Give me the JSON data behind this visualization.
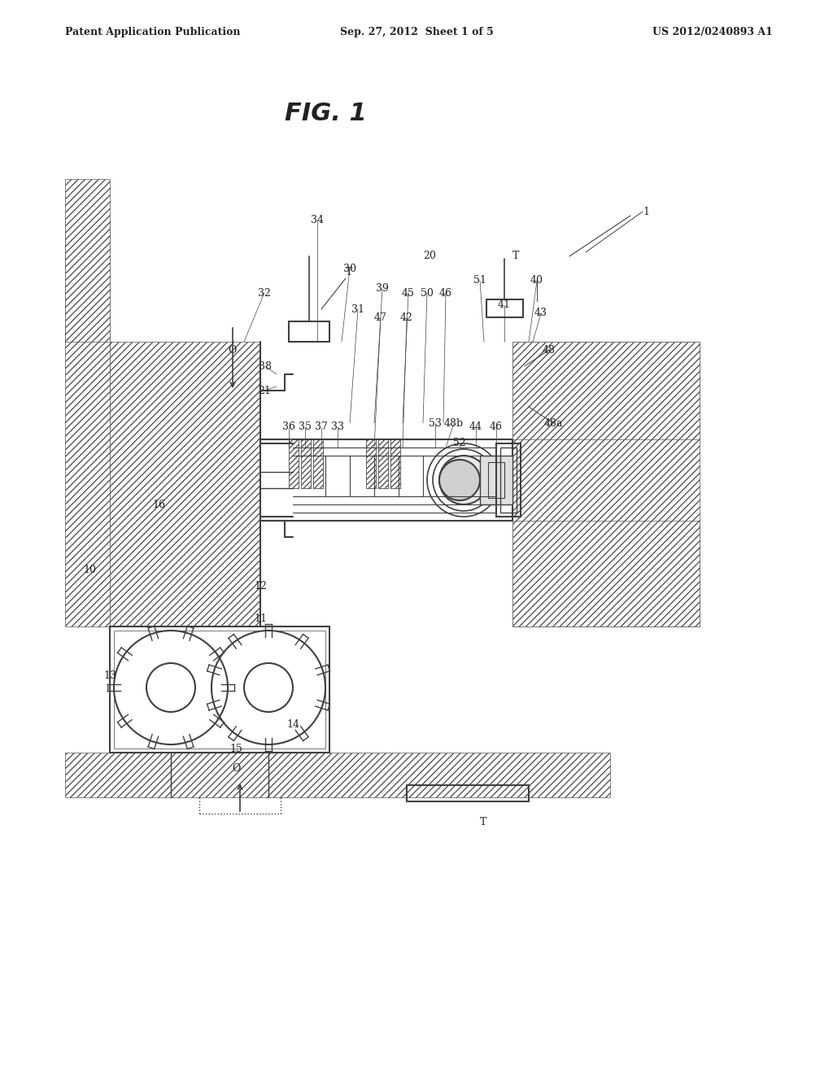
{
  "bg_color": "#ffffff",
  "line_color": "#404040",
  "hatch_color": "#606060",
  "header_left": "Patent Application Publication",
  "header_center": "Sep. 27, 2012  Sheet 1 of 5",
  "header_right": "US 2012/0240893 A1",
  "fig_title": "FIG. 1",
  "fig_size": [
    10.24,
    13.2
  ],
  "dpi": 100
}
